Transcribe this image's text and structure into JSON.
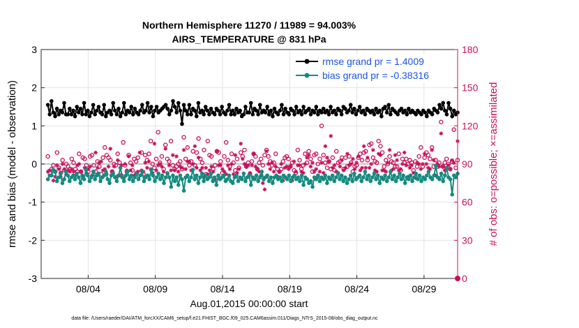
{
  "chart_data": {
    "type": "line",
    "title_line1": "Northern Hemisphere 11270 / 11989 = 94.003%",
    "title_line2": "AIRS_TEMPERATURE @ 831 hPa",
    "ylabel_left": "rmse and bias (model - observation)",
    "ylabel_right": "# of obs: o=possible; ×=assimilated",
    "xlabel": "Aug.01,2015 00:00:00 start",
    "footer": "data file: /Users/raeder/DAI/ATM_forcXX/CAM6_setup/f.e21.FHIST_BGC.f09_025.CAM6assim.011/Diags_NTrS_2015-08/obs_diag_output.nc",
    "ylim_left": [
      -3,
      3
    ],
    "ylim_right": [
      0,
      180
    ],
    "xlim": [
      0.5,
      31.5
    ],
    "yticks_left": [
      "3",
      "2",
      "1",
      "0",
      "-1",
      "-2",
      "-3"
    ],
    "yticks_right": [
      "180",
      "150",
      "120",
      "90",
      "60",
      "30",
      "0"
    ],
    "xticks": [
      "08/04",
      "08/09",
      "08/14",
      "08/19",
      "08/24",
      "08/29"
    ],
    "xtick_days": [
      4,
      9,
      14,
      19,
      24,
      29
    ],
    "colors": {
      "rmse": "#000000",
      "bias": "#158a80",
      "obs": "#c8105a",
      "legend_text": "#1a53e8",
      "grid": "#e3e3e3",
      "zero_line": "#b4b4b4"
    },
    "legend": [
      "rmse grand pr = 1.4009",
      "bias grand pr = -0.38316"
    ],
    "series": [
      {
        "name": "rmse",
        "values": [
          1.55,
          1.3,
          1.65,
          1.35,
          1.25,
          1.45,
          1.3,
          1.4,
          1.35,
          1.6,
          1.3,
          1.3,
          1.45,
          1.3,
          1.4,
          1.25,
          1.5,
          1.35,
          1.45,
          1.3,
          1.6,
          1.3,
          1.4,
          1.25,
          1.35,
          1.55,
          1.3,
          1.4,
          1.5,
          1.35,
          1.3,
          1.55,
          1.25,
          1.35,
          1.4,
          1.3,
          1.6,
          1.4,
          1.3,
          1.45,
          1.25,
          1.35,
          1.6,
          1.3,
          1.4,
          1.35,
          1.5,
          1.3,
          1.45,
          1.35,
          1.3,
          1.4,
          1.55,
          1.35,
          1.4,
          1.6,
          1.35,
          1.5,
          1.25,
          1.4,
          1.5,
          1.35,
          1.4,
          1.45,
          1.5,
          1.55,
          1.45,
          1.3,
          1.4,
          1.65,
          1.5,
          1.35,
          1.6,
          1.4,
          1.05,
          1.55,
          1.4,
          1.3,
          1.55,
          1.3,
          1.45,
          1.4,
          1.25,
          1.6,
          1.35,
          1.4,
          1.3,
          1.5,
          1.4,
          1.3,
          1.45,
          1.35,
          1.3,
          1.45,
          1.4,
          1.3,
          1.5,
          1.35,
          1.3,
          1.4,
          1.55,
          1.3,
          1.4,
          1.3,
          1.45,
          1.35,
          1.4,
          1.25,
          1.3,
          1.5,
          1.35,
          1.35,
          1.6,
          1.3,
          1.45,
          1.4,
          1.3,
          1.55,
          1.35,
          1.4,
          1.35,
          1.5,
          1.3,
          1.4,
          1.25,
          1.45,
          1.35,
          1.3,
          1.4,
          1.55,
          1.3,
          1.45,
          1.35,
          1.3,
          1.45,
          1.4,
          1.3,
          1.5,
          1.35,
          1.4,
          1.3,
          1.5,
          1.35,
          1.4,
          1.45,
          1.3,
          1.4,
          1.35,
          1.5,
          1.3,
          1.4,
          1.35,
          1.45,
          1.35,
          1.4,
          1.3,
          1.5,
          1.35,
          1.4,
          1.3,
          1.45,
          1.4,
          1.3,
          1.5,
          1.45,
          1.35,
          1.4,
          1.55,
          1.35,
          1.45,
          1.3,
          1.4,
          1.5,
          1.35,
          1.4,
          1.3,
          1.45,
          1.4,
          1.35,
          1.4,
          1.3,
          1.45,
          1.35,
          1.4,
          1.25,
          1.45,
          1.5,
          1.35,
          1.55,
          1.3,
          1.45,
          1.4,
          1.35,
          1.3,
          1.4,
          1.45,
          1.35,
          1.4,
          1.3,
          1.45,
          1.35,
          1.4,
          1.35,
          1.3,
          1.4,
          1.35,
          1.3,
          1.4,
          1.35,
          1.25,
          1.4,
          1.35,
          1.3,
          1.45,
          1.4,
          1.35,
          1.55,
          1.45,
          1.6,
          1.4,
          1.3,
          1.6,
          1.45,
          1.25,
          1.4,
          1.3,
          1.35
        ]
      },
      {
        "name": "bias",
        "values": [
          -0.4,
          -0.3,
          -0.3,
          -0.15,
          -0.2,
          -0.45,
          -0.35,
          -0.25,
          -0.5,
          -0.4,
          -0.2,
          -0.3,
          -0.45,
          -0.35,
          -0.3,
          -0.4,
          -0.25,
          -0.35,
          -0.5,
          -0.3,
          -0.4,
          -0.15,
          -0.3,
          -0.45,
          -0.35,
          -0.2,
          -0.4,
          -0.3,
          -0.25,
          -0.45,
          -0.35,
          -0.3,
          -0.2,
          -0.4,
          -0.5,
          -0.3,
          -0.25,
          -0.35,
          -0.45,
          -0.3,
          -0.1,
          -0.35,
          -0.45,
          -0.3,
          -0.2,
          -0.4,
          -0.3,
          -0.45,
          -0.35,
          -0.25,
          -0.4,
          -0.3,
          -0.2,
          -0.45,
          -0.35,
          -0.3,
          -0.4,
          -0.15,
          -0.3,
          -0.45,
          -0.35,
          -0.25,
          -0.4,
          -0.3,
          -0.5,
          -0.35,
          -0.25,
          -0.35,
          -0.6,
          -0.3,
          -0.45,
          -0.35,
          -0.55,
          -0.3,
          -0.4,
          -0.7,
          -0.35,
          -0.3,
          -0.45,
          -0.35,
          -0.15,
          -0.4,
          -0.3,
          -0.5,
          -0.35,
          -0.25,
          -0.45,
          -0.3,
          -0.4,
          -0.35,
          -0.25,
          -0.45,
          -0.35,
          -0.55,
          -0.3,
          -0.4,
          -0.35,
          -0.3,
          -0.45,
          -0.4,
          -0.3,
          -0.45,
          -0.5,
          -0.35,
          -0.3,
          -0.45,
          -0.35,
          -0.4,
          -0.25,
          -0.45,
          -0.35,
          -0.3,
          -0.55,
          -0.35,
          -0.4,
          -0.3,
          -0.45,
          -0.35,
          -0.2,
          -0.4,
          -0.35,
          -0.3,
          -0.45,
          -0.35,
          -0.5,
          -0.35,
          -0.3,
          -0.4,
          -0.35,
          -0.45,
          -0.3,
          -0.35,
          -0.4,
          -0.3,
          -0.45,
          -0.35,
          -0.3,
          -0.4,
          -0.35,
          -0.45,
          -0.3,
          -0.55,
          -0.35,
          -0.4,
          -0.5,
          -0.45,
          -0.6,
          -0.35,
          -0.4,
          -0.3,
          -0.45,
          -0.35,
          -0.4,
          -0.3,
          -0.5,
          -0.35,
          -0.4,
          -0.3,
          -0.45,
          -0.35,
          -0.25,
          -0.4,
          -0.3,
          -0.45,
          -0.35,
          -0.5,
          -0.4,
          -0.3,
          -0.45,
          -0.25,
          -0.4,
          -0.35,
          -0.3,
          -0.45,
          -0.35,
          -0.2,
          -0.4,
          -0.3,
          -0.45,
          -0.35,
          -0.25,
          -0.4,
          -0.3,
          -0.5,
          -0.35,
          -0.4,
          -0.3,
          -0.45,
          -0.35,
          -0.2,
          -0.4,
          -0.3,
          -0.45,
          -0.35,
          -0.25,
          -0.4,
          -0.3,
          -0.5,
          -0.35,
          -0.4,
          -0.3,
          -0.45,
          -0.35,
          -0.25,
          -0.4,
          -0.3,
          -0.45,
          -0.35,
          -0.4,
          -0.3,
          -0.2,
          -0.35,
          -0.4,
          -0.3,
          -0.05,
          -0.35,
          -0.4,
          -0.25,
          -0.45,
          -0.3,
          -0.1,
          -0.35,
          -0.4,
          -0.8,
          -0.3,
          -0.35,
          -0.25
        ]
      },
      {
        "name": "obs_possible",
        "values": [
          96,
          83,
          86,
          89,
          84,
          99,
          87,
          83,
          93,
          85,
          90,
          88,
          86,
          94,
          91,
          86,
          84,
          98,
          84,
          95,
          94,
          89,
          84,
          96,
          97,
          89,
          84,
          92,
          88,
          82,
          95,
          103,
          97,
          95,
          93,
          84,
          90,
          89,
          98,
          91,
          81,
          107,
          89,
          84,
          97,
          91,
          85,
          94,
          92,
          95,
          83,
          99,
          82,
          97,
          93,
          98,
          108,
          90,
          87,
          94,
          115,
          91,
          96,
          86,
          105,
          94,
          92,
          108,
          89,
          86,
          88,
          90,
          92,
          86,
          111,
          94,
          103,
          89,
          92,
          100,
          89,
          99,
          110,
          94,
          91,
          101,
          82,
          108,
          97,
          96,
          86,
          89,
          100,
          99,
          92,
          83,
          96,
          107,
          93,
          88,
          98,
          91,
          85,
          94,
          87,
          99,
          96,
          101,
          88,
          91,
          82,
          92,
          98,
          96,
          86,
          91,
          94,
          89,
          97,
          101,
          96,
          92,
          89,
          91,
          98,
          86,
          84,
          86,
          92,
          95,
          96,
          94,
          88,
          91,
          85,
          83,
          101,
          93,
          86,
          89,
          98,
          91,
          100,
          94,
          84,
          97,
          98,
          90,
          94,
          120,
          97,
          91,
          87,
          92,
          86,
          95,
          85,
          100,
          91,
          92,
          95,
          86,
          95,
          88,
          96,
          91,
          84,
          88,
          89,
          95,
          98,
          93,
          99,
          100,
          93,
          105,
          106,
          95,
          92,
          91,
          108,
          104,
          99,
          88,
          93,
          90,
          96,
          92,
          91,
          88,
          88,
          98,
          85,
          94,
          91,
          94,
          90,
          93,
          91,
          85,
          92,
          88,
          96,
          103,
          88,
          95,
          99,
          97,
          94,
          103,
          88,
          93,
          88,
          91,
          123,
          88,
          91,
          94,
          90,
          86,
          92,
          117,
          87,
          93
        ]
      },
      {
        "name": "obs_assimilated",
        "values": [
          84,
          85,
          81,
          77,
          80,
          89,
          86,
          80,
          90,
          86,
          82,
          85,
          84,
          86,
          84,
          81,
          89,
          90,
          84,
          80,
          87,
          83,
          86,
          88,
          81,
          84,
          99,
          87,
          91,
          92,
          85,
          86,
          82,
          88,
          102,
          84,
          88,
          80,
          93,
          81,
          89,
          79,
          90,
          85,
          96,
          85,
          89,
          81,
          83,
          84,
          99,
          85,
          84,
          91,
          87,
          92,
          86,
          83,
          106,
          85,
          89,
          90,
          88,
          84,
          102,
          83,
          89,
          85,
          97,
          85,
          96,
          84,
          88,
          87,
          101,
          86,
          92,
          92,
          85,
          90,
          104,
          87,
          95,
          85,
          87,
          80,
          87,
          82,
          85,
          88,
          84,
          78,
          100,
          89,
          89,
          86,
          84,
          82,
          89,
          86,
          90,
          82,
          97,
          83,
          86,
          106,
          94,
          90,
          88,
          89,
          83,
          89,
          98,
          88,
          86,
          84,
          81,
          75,
          70,
          100,
          90,
          86,
          91,
          84,
          88,
          80,
          84,
          90,
          77,
          87,
          88,
          86,
          88,
          77,
          92,
          84,
          89,
          89,
          84,
          83,
          90,
          95,
          97,
          88,
          91,
          84,
          86,
          80,
          84,
          91,
          83,
          104,
          95,
          92,
          112,
          87,
          89,
          84,
          83,
          88,
          93,
          85,
          87,
          98,
          89,
          90,
          94,
          86,
          91,
          96,
          85,
          87,
          104,
          87,
          95,
          87,
          90,
          101,
          85,
          84,
          98,
          97,
          85,
          85,
          84,
          91,
          101,
          85,
          86,
          97,
          93,
          85,
          86,
          90,
          99,
          89,
          80,
          87,
          89,
          83,
          79,
          91,
          90,
          86,
          90,
          98,
          90,
          87,
          86,
          101,
          93,
          81,
          90,
          88,
          114,
          88,
          85,
          87,
          89,
          86,
          93,
          91,
          80,
          108
        ]
      }
    ]
  }
}
